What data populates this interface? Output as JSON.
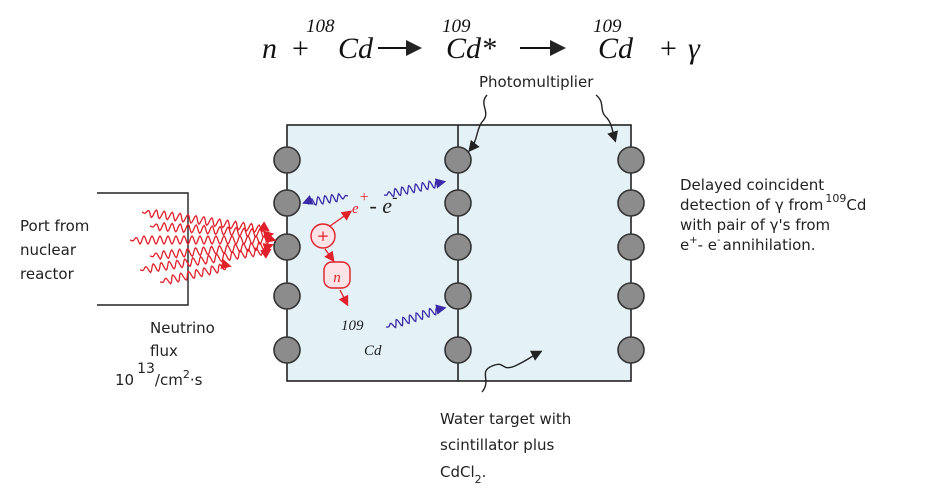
{
  "equation": {
    "n": "n",
    "plus1": "+",
    "mass108": "108",
    "cd1": "Cd",
    "mass109a": "109",
    "cd_excited": "Cd*",
    "mass109b": "109",
    "cd2": "Cd",
    "plus2": "+",
    "gamma": "γ"
  },
  "labels": {
    "photomultiplier": "Photomultiplier",
    "detection": {
      "line1": "Delayed coincident",
      "line2": "detection of γ from",
      "line2_sup": "109",
      "line2_end": "Cd",
      "line3": "with pair of γ's from",
      "line4_e": "e",
      "line4_sup1": "+",
      "line4_mid": "- e",
      "line4_sup2": "-",
      "line4_end": "annihilation."
    },
    "port": {
      "line1": "Port from",
      "line2": "nuclear",
      "line3": "reactor"
    },
    "flux": {
      "line1": "Neutrino",
      "line2": "flux",
      "base": "10",
      "exp": "13",
      "unit": "/cm",
      "unit_exp": "2",
      "unit_end": "·s"
    },
    "water": {
      "line1": "Water target with",
      "line2": "scintillator plus",
      "line3": "CdCl",
      "line3_sub": "2",
      "line3_end": "."
    }
  },
  "inside": {
    "positron": "e",
    "positron_sup": "+",
    "electron": "- e",
    "electron_sup": "-",
    "plus": "+",
    "neutron": "n",
    "cd_mass": "109",
    "cd": "Cd"
  }
}
